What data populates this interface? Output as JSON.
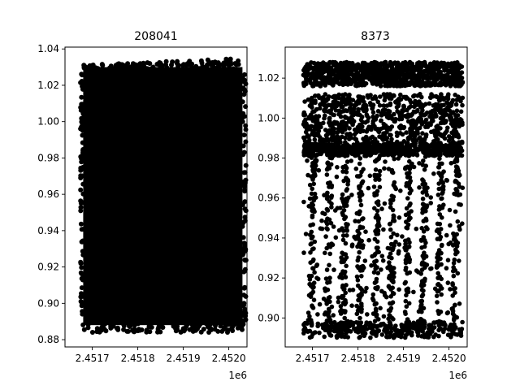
{
  "chart_data": [
    {
      "type": "scatter",
      "title": "208041",
      "xlabel": "",
      "ylabel": "",
      "x_offset_label": "1e6",
      "xlim": [
        2.45164,
        2.45204
      ],
      "ylim": [
        0.876,
        1.041
      ],
      "x_ticks": [
        2.4517,
        2.4518,
        2.4519,
        2.452
      ],
      "x_tick_labels": [
        "2.4517",
        "2.4518",
        "2.4519",
        "2.4520"
      ],
      "y_ticks": [
        0.88,
        0.9,
        0.92,
        0.94,
        0.96,
        0.98,
        1.0,
        1.02,
        1.04
      ],
      "y_tick_labels": [
        "0.88",
        "0.90",
        "0.92",
        "0.94",
        "0.96",
        "0.98",
        "1.00",
        "1.02",
        "1.04"
      ],
      "data_x_range": [
        2.45168,
        2.45203
      ],
      "data_y_range": [
        0.884,
        1.035
      ],
      "marker_color": "#000000",
      "note": "dense light curve: points fill the full data range"
    },
    {
      "type": "scatter",
      "title": "8373",
      "xlabel": "",
      "ylabel": "",
      "x_offset_label": "1e6",
      "xlim": [
        2.45164,
        2.45204
      ],
      "ylim": [
        0.8855,
        1.0355
      ],
      "x_ticks": [
        2.4517,
        2.4518,
        2.4519,
        2.452
      ],
      "x_tick_labels": [
        "2.4517",
        "2.4518",
        "2.4519",
        "2.4520"
      ],
      "y_ticks": [
        0.9,
        0.92,
        0.94,
        0.96,
        0.98,
        1.0,
        1.02
      ],
      "y_tick_labels": [
        "0.90",
        "0.92",
        "0.94",
        "0.96",
        "0.98",
        "1.00",
        "1.02"
      ],
      "data_x_range": [
        2.45168,
        2.45203
      ],
      "data_y_range": [
        0.889,
        1.029
      ],
      "marker_color": "#000000",
      "dense_bands": [
        [
          1.016,
          1.028
        ],
        [
          0.982,
          1.012
        ]
      ],
      "dip_columns_x": [
        2.4517,
        2.451735,
        2.45177,
        2.451805,
        2.45184,
        2.451875,
        2.45191,
        2.451945,
        2.45198,
        2.452015
      ],
      "note": "sparse points between 0.89 and 0.98 clustered in vertical streaks"
    }
  ]
}
